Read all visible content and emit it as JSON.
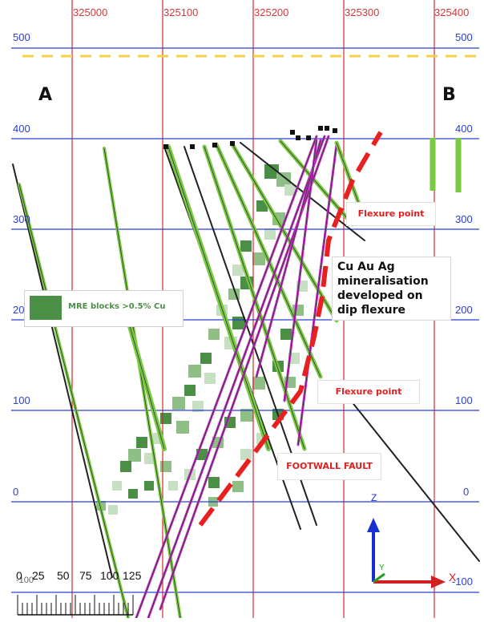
{
  "section_labels": {
    "start": "A",
    "end": "B"
  },
  "eastings": [
    "325000",
    "325100",
    "325200",
    "325300",
    "325400"
  ],
  "elevations": {
    "left": [
      "500",
      "400",
      "300",
      "200",
      "100",
      "0",
      "-100"
    ],
    "right": [
      "500",
      "400",
      "300",
      "200",
      "100",
      "0",
      "-100"
    ]
  },
  "legend": {
    "label": "MRE blocks >0.5% Cu",
    "color": "#4a8f45"
  },
  "annotations": {
    "flexure_upper": "Flexure point",
    "flexure_lower": "Flexure point",
    "footwall_fault": "FOOTWALL FAULT",
    "mineralisation_note": [
      "Cu Au Ag",
      "mineralisation",
      "developed on",
      "dip flexure"
    ]
  },
  "scale_bar": {
    "labels": [
      "0",
      "25",
      "50",
      "75",
      "100",
      "125"
    ]
  },
  "axis_triad": {
    "z": "Z",
    "y": "Y",
    "x": "X"
  },
  "colors": {
    "grid_vertical": "#d42b2b",
    "grid_horizontal": "#2a3fd6",
    "topography": "#f5d14a",
    "fault": "#e82020",
    "drillhole_green": "#7ac943",
    "drillhole_magenta": "#c030c0",
    "block_dark": "#4a8f45"
  }
}
